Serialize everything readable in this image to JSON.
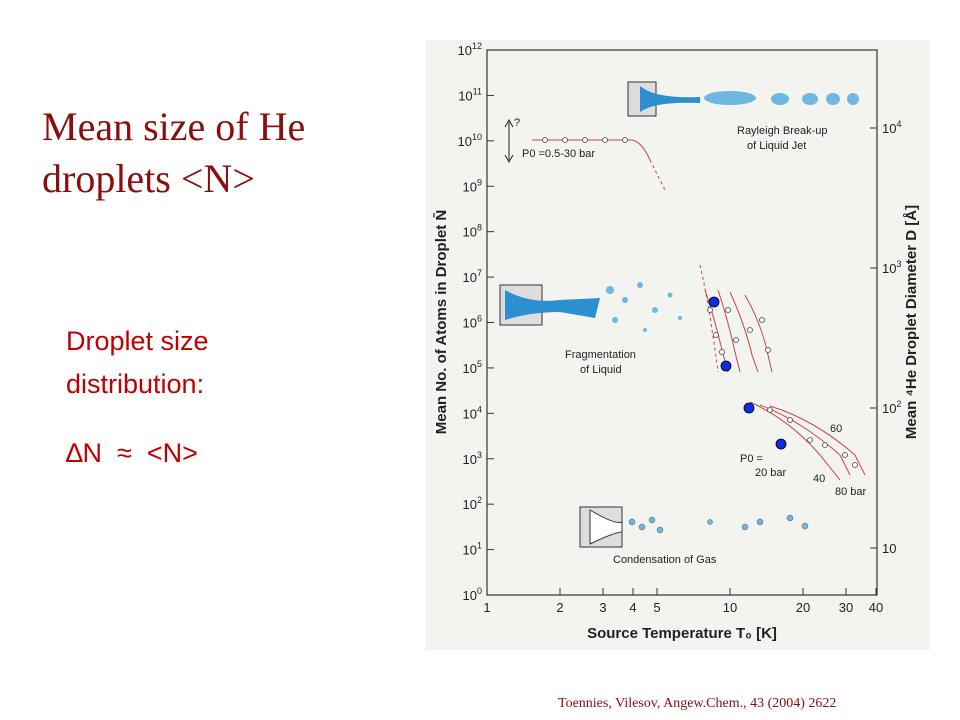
{
  "slide": {
    "title_line1": "Mean size of He",
    "title_line2": "droplets <N>",
    "text_line1": "Droplet size",
    "text_line2": "distribution:",
    "formula": "∆N  ≈  <N>",
    "citation": "Toennies, Vilesov, Angew.Chem., 43 (2004) 2622"
  },
  "figure": {
    "y_label": "Mean No. of Atoms in Droplet N̄",
    "y2_label": "Mean ⁴He Droplet Diameter D [Å]",
    "x_label": "Source Temperature T₀ [K]",
    "yticks": [
      {
        "base": "10",
        "exp": "12"
      },
      {
        "base": "10",
        "exp": "11"
      },
      {
        "base": "10",
        "exp": "10"
      },
      {
        "base": "10",
        "exp": "9"
      },
      {
        "base": "10",
        "exp": "8"
      },
      {
        "base": "10",
        "exp": "7"
      },
      {
        "base": "10",
        "exp": "6"
      },
      {
        "base": "10",
        "exp": "5"
      },
      {
        "base": "10",
        "exp": "4"
      },
      {
        "base": "10",
        "exp": "3"
      },
      {
        "base": "10",
        "exp": "2"
      },
      {
        "base": "10",
        "exp": "1"
      },
      {
        "base": "10",
        "exp": "0"
      }
    ],
    "y2ticks": [
      {
        "base": "10",
        "exp": "4"
      },
      {
        "base": "10",
        "exp": "3"
      },
      {
        "base": "10",
        "exp": "2"
      },
      {
        "base": "10",
        "exp": ""
      }
    ],
    "xticks": [
      "1",
      "2",
      "3",
      "4",
      "5",
      "10",
      "20",
      "30",
      "40"
    ],
    "annotations": {
      "rayleigh1": "Rayleigh Break-up",
      "rayleigh2": "of Liquid Jet",
      "question": "?",
      "p0_range": "P0 =0.5-30 bar",
      "frag1": "Fragmentation",
      "frag2": "of Liquid",
      "p60": "60",
      "p20a": "P0 =",
      "p20b": "20 bar",
      "p40": "40",
      "p80": "80 bar",
      "condensation": "Condensation of Gas"
    }
  }
}
